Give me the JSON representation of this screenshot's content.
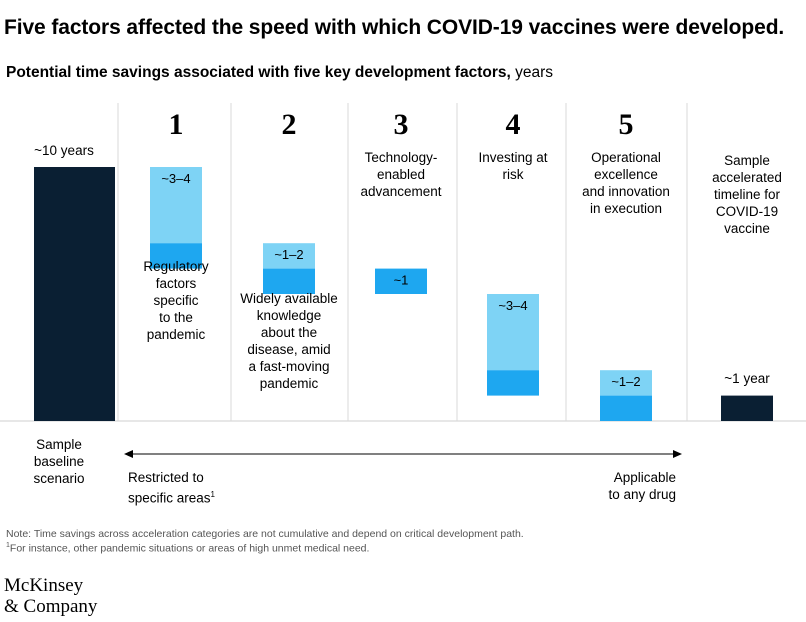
{
  "title": "Five factors affected the speed with which COVID-19 vaccines were developed.",
  "subtitle_bold": "Potential time savings associated with five key development factors,",
  "subtitle_unit": " years",
  "chart_data": {
    "type": "bar",
    "title": "Five factors affected the speed with which COVID-19 vaccines were developed.",
    "ylabel": "years",
    "ylim": [
      0,
      10
    ],
    "baseline": {
      "category": "Sample baseline scenario",
      "value": 10,
      "label": "~10 years",
      "color": "#0a1f33"
    },
    "accelerated": {
      "category": "Sample accelerated timeline for COVID-19 vaccine",
      "value": 1,
      "label": "~1 year",
      "color": "#0a1f33"
    },
    "factors": [
      {
        "number": "1",
        "category": "Regulatory factors specific to the pandemic",
        "label": "~3–4",
        "low": 3,
        "high": 4,
        "start": 10
      },
      {
        "number": "2",
        "category": "Widely available knowledge about the disease, amid a fast-moving pandemic",
        "label": "~1–2",
        "low": 1,
        "high": 2,
        "start": 7
      },
      {
        "number": "3",
        "category": "Technology-enabled advancement",
        "label": "~1",
        "low": 1,
        "high": 1,
        "start": 6
      },
      {
        "number": "4",
        "category": "Investing at risk",
        "label": "~3–4",
        "low": 3,
        "high": 4,
        "start": 5
      },
      {
        "number": "5",
        "category": "Operational excellence and innovation in execution",
        "label": "~1–2",
        "low": 1,
        "high": 2,
        "start": 2
      }
    ],
    "colors": {
      "range_light": "#7ed3f5",
      "range_dark": "#1ea7f0",
      "divider": "#d9d9d9"
    }
  },
  "factor_labels": [
    [
      "Regulatory",
      "factors",
      "specific",
      "to the",
      "pandemic"
    ],
    [
      "Widely available",
      "knowledge",
      "about the",
      "disease, amid",
      "a fast-moving",
      "pandemic"
    ],
    [
      "Technology-",
      "enabled",
      "advancement"
    ],
    [
      "Investing at",
      "risk"
    ],
    [
      "Operational",
      "excellence",
      "and innovation",
      "in execution"
    ]
  ],
  "baseline_label_lines": [
    "Sample",
    "baseline",
    "scenario"
  ],
  "accelerated_label_lines": [
    "Sample",
    "accelerated",
    "timeline for",
    "COVID-19",
    "vaccine"
  ],
  "range_left_lines": [
    "Restricted to",
    "specific areas"
  ],
  "range_left_sup": "1",
  "range_right_lines": [
    "Applicable",
    "to any drug"
  ],
  "note": "Note: Time savings across acceleration categories are not cumulative and depend on critical development path.",
  "footnote_sup": "1",
  "footnote": "For instance, other pandemic situations or areas of high unmet medical need.",
  "logo_line1": "McKinsey",
  "logo_line2": "& Company"
}
